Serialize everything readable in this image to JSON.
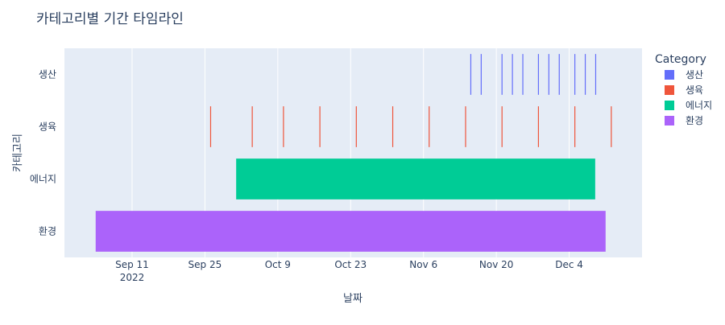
{
  "chart_data": {
    "type": "timeline",
    "title": "카테고리별 기간 타임라인",
    "xlabel": "날짜",
    "ylabel": "카테고리",
    "x_axis": {
      "ticks": [
        {
          "date": "2022-09-11",
          "label": "Sep 11",
          "sublabel": "2022"
        },
        {
          "date": "2022-09-25",
          "label": "Sep 25",
          "sublabel": ""
        },
        {
          "date": "2022-10-09",
          "label": "Oct 9",
          "sublabel": ""
        },
        {
          "date": "2022-10-23",
          "label": "Oct 23",
          "sublabel": ""
        },
        {
          "date": "2022-11-06",
          "label": "Nov 6",
          "sublabel": ""
        },
        {
          "date": "2022-11-20",
          "label": "Nov 20",
          "sublabel": ""
        },
        {
          "date": "2022-12-04",
          "label": "Dec 4",
          "sublabel": ""
        }
      ],
      "range": [
        "2022-08-29",
        "2022-12-18"
      ]
    },
    "categories": [
      "생산",
      "생육",
      "에너지",
      "환경"
    ],
    "legend": {
      "title": "Category",
      "placement": "right"
    },
    "series": [
      {
        "name": "생산",
        "color": "#636efa",
        "intervals": [
          [
            "2022-11-15",
            "2022-11-15"
          ],
          [
            "2022-11-17",
            "2022-11-17"
          ],
          [
            "2022-11-21",
            "2022-11-21"
          ],
          [
            "2022-11-23",
            "2022-11-23"
          ],
          [
            "2022-11-25",
            "2022-11-25"
          ],
          [
            "2022-11-28",
            "2022-11-28"
          ],
          [
            "2022-11-30",
            "2022-11-30"
          ],
          [
            "2022-12-02",
            "2022-12-02"
          ],
          [
            "2022-12-05",
            "2022-12-05"
          ],
          [
            "2022-12-07",
            "2022-12-07"
          ],
          [
            "2022-12-09",
            "2022-12-09"
          ]
        ]
      },
      {
        "name": "생육",
        "color": "#ef553b",
        "intervals": [
          [
            "2022-09-26",
            "2022-09-26"
          ],
          [
            "2022-10-04",
            "2022-10-04"
          ],
          [
            "2022-10-10",
            "2022-10-10"
          ],
          [
            "2022-10-17",
            "2022-10-17"
          ],
          [
            "2022-10-24",
            "2022-10-24"
          ],
          [
            "2022-10-31",
            "2022-10-31"
          ],
          [
            "2022-11-07",
            "2022-11-07"
          ],
          [
            "2022-11-14",
            "2022-11-14"
          ],
          [
            "2022-11-21",
            "2022-11-21"
          ],
          [
            "2022-11-28",
            "2022-11-28"
          ],
          [
            "2022-12-05",
            "2022-12-05"
          ],
          [
            "2022-12-12",
            "2022-12-12"
          ]
        ]
      },
      {
        "name": "에너지",
        "color": "#00cc96",
        "intervals": [
          [
            "2022-10-01",
            "2022-12-09"
          ]
        ]
      },
      {
        "name": "환경",
        "color": "#ab63fa",
        "intervals": [
          [
            "2022-09-04",
            "2022-12-11"
          ]
        ]
      }
    ],
    "grid": true
  }
}
